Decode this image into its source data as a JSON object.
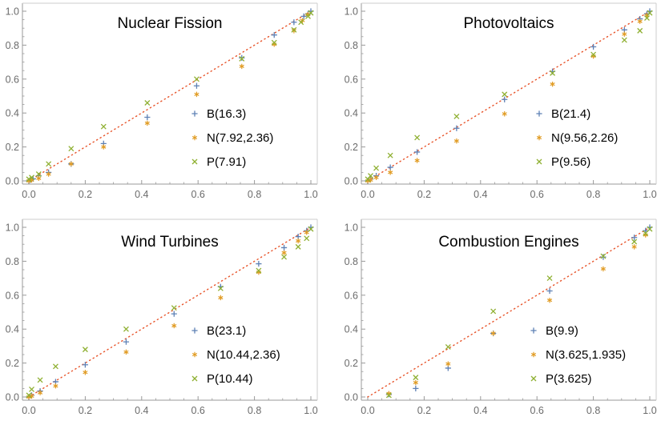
{
  "figure": {
    "description_free": true
  },
  "colors": {
    "series_B": "#5e81b5",
    "series_N": "#e19c24",
    "series_P": "#8fb032",
    "reference_line": "#e8542a",
    "axis": "#999999",
    "tick_text": "#6b6b6b"
  },
  "chart_data": [
    {
      "type": "scatter",
      "title": "Nuclear Fission",
      "xlim": [
        0,
        1
      ],
      "ylim": [
        0,
        1
      ],
      "xticks": [
        "0.0",
        "0.2",
        "0.4",
        "0.6",
        "0.8",
        "1.0"
      ],
      "yticks": [
        "0.0",
        "0.2",
        "0.4",
        "0.6",
        "0.8",
        "1.0"
      ],
      "reference_line": "y=x",
      "legend_position": "right",
      "series": [
        {
          "name": "B(16.3)",
          "marker": "plus",
          "x": [
            0.0,
            0.005,
            0.015,
            0.035,
            0.07,
            0.15,
            0.265,
            0.42,
            0.595,
            0.755,
            0.87,
            0.94,
            0.975,
            0.99,
            1.0
          ],
          "y": [
            0.0,
            0.005,
            0.012,
            0.03,
            0.05,
            0.1,
            0.22,
            0.375,
            0.56,
            0.725,
            0.86,
            0.935,
            0.97,
            0.985,
            1.0
          ]
        },
        {
          "name": "N(7.92,2.36)",
          "marker": "star",
          "x": [
            0.0,
            0.01,
            0.035,
            0.07,
            0.15,
            0.265,
            0.42,
            0.595,
            0.755,
            0.87,
            0.94,
            0.97,
            0.99
          ],
          "y": [
            0.0,
            0.005,
            0.015,
            0.04,
            0.1,
            0.2,
            0.34,
            0.51,
            0.675,
            0.805,
            0.885,
            0.945,
            0.98
          ]
        },
        {
          "name": "P(7.91)",
          "marker": "x",
          "x": [
            0.0,
            0.01,
            0.035,
            0.07,
            0.15,
            0.265,
            0.42,
            0.595,
            0.755,
            0.87,
            0.94,
            0.965,
            0.99,
            1.0
          ],
          "y": [
            0.01,
            0.02,
            0.04,
            0.1,
            0.19,
            0.32,
            0.46,
            0.6,
            0.72,
            0.815,
            0.89,
            0.935,
            0.97,
            0.99
          ]
        }
      ]
    },
    {
      "type": "scatter",
      "title": "Photovoltaics",
      "xlim": [
        0,
        1
      ],
      "ylim": [
        0,
        1
      ],
      "xticks": [
        "0.0",
        "0.2",
        "0.4",
        "0.6",
        "0.8",
        "1.0"
      ],
      "yticks": [
        "0.0",
        "0.2",
        "0.4",
        "0.6",
        "0.8",
        "1.0"
      ],
      "reference_line": "y=x",
      "legend_position": "right",
      "series": [
        {
          "name": "B(21.4)",
          "marker": "plus",
          "x": [
            0.0,
            0.01,
            0.03,
            0.08,
            0.175,
            0.315,
            0.485,
            0.655,
            0.8,
            0.91,
            0.965,
            0.99,
            1.0
          ],
          "y": [
            0.0,
            0.01,
            0.03,
            0.08,
            0.17,
            0.31,
            0.48,
            0.645,
            0.79,
            0.89,
            0.955,
            0.985,
            1.0
          ]
        },
        {
          "name": "N(9.56,2.26)",
          "marker": "star",
          "x": [
            0.0,
            0.01,
            0.03,
            0.08,
            0.175,
            0.315,
            0.485,
            0.655,
            0.8,
            0.91,
            0.965,
            0.99
          ],
          "y": [
            0.0,
            0.005,
            0.02,
            0.05,
            0.12,
            0.235,
            0.395,
            0.57,
            0.735,
            0.865,
            0.94,
            0.975
          ]
        },
        {
          "name": "P(9.56)",
          "marker": "x",
          "x": [
            0.0,
            0.01,
            0.03,
            0.08,
            0.175,
            0.315,
            0.485,
            0.655,
            0.8,
            0.91,
            0.965,
            0.99,
            1.0
          ],
          "y": [
            0.01,
            0.03,
            0.075,
            0.15,
            0.255,
            0.38,
            0.51,
            0.635,
            0.745,
            0.83,
            0.885,
            0.96,
            0.99
          ]
        }
      ]
    },
    {
      "type": "scatter",
      "title": "Wind Turbines",
      "xlim": [
        0,
        1
      ],
      "ylim": [
        0,
        1
      ],
      "xticks": [
        "0.0",
        "0.2",
        "0.4",
        "0.6",
        "0.8",
        "1.0"
      ],
      "yticks": [
        "0.0",
        "0.2",
        "0.4",
        "0.6",
        "0.8",
        "1.0"
      ],
      "reference_line": "y=x",
      "legend_position": "right",
      "series": [
        {
          "name": "B(23.1)",
          "marker": "plus",
          "x": [
            0.0,
            0.01,
            0.04,
            0.095,
            0.2,
            0.345,
            0.515,
            0.68,
            0.815,
            0.905,
            0.955,
            0.985,
            1.0
          ],
          "y": [
            0.0,
            0.01,
            0.035,
            0.09,
            0.19,
            0.325,
            0.49,
            0.65,
            0.785,
            0.88,
            0.945,
            0.98,
            1.0
          ]
        },
        {
          "name": "N(10.44,2.36)",
          "marker": "star",
          "x": [
            0.0,
            0.01,
            0.04,
            0.095,
            0.2,
            0.345,
            0.515,
            0.68,
            0.815,
            0.905,
            0.955,
            0.985
          ],
          "y": [
            0.0,
            0.005,
            0.025,
            0.065,
            0.145,
            0.265,
            0.42,
            0.585,
            0.735,
            0.85,
            0.92,
            0.97
          ]
        },
        {
          "name": "P(10.44)",
          "marker": "x",
          "x": [
            0.0,
            0.01,
            0.04,
            0.095,
            0.2,
            0.345,
            0.515,
            0.68,
            0.815,
            0.905,
            0.955,
            0.985,
            1.0
          ],
          "y": [
            0.01,
            0.045,
            0.1,
            0.18,
            0.28,
            0.4,
            0.525,
            0.64,
            0.745,
            0.825,
            0.885,
            0.935,
            0.99
          ]
        }
      ]
    },
    {
      "type": "scatter",
      "title": "Combustion Engines",
      "xlim": [
        0,
        1
      ],
      "ylim": [
        0,
        1
      ],
      "xticks": [
        "0.0",
        "0.2",
        "0.4",
        "0.6",
        "0.8",
        "1.0"
      ],
      "yticks": [
        "0.0",
        "0.2",
        "0.4",
        "0.6",
        "0.8",
        "1.0"
      ],
      "reference_line": "y=x",
      "legend_position": "right",
      "series": [
        {
          "name": "B(9.9)",
          "marker": "plus",
          "x": [
            0.075,
            0.17,
            0.285,
            0.445,
            0.645,
            0.835,
            0.945,
            0.985,
            1.0
          ],
          "y": [
            0.015,
            0.05,
            0.17,
            0.375,
            0.625,
            0.825,
            0.94,
            0.98,
            1.0
          ]
        },
        {
          "name": "N(3.625,1.935)",
          "marker": "star",
          "x": [
            0.075,
            0.17,
            0.285,
            0.445,
            0.645,
            0.835,
            0.945,
            0.985
          ],
          "y": [
            0.02,
            0.085,
            0.195,
            0.375,
            0.57,
            0.755,
            0.885,
            0.955
          ]
        },
        {
          "name": "P(3.625)",
          "marker": "x",
          "x": [
            0.075,
            0.17,
            0.285,
            0.445,
            0.645,
            0.835,
            0.945,
            0.985,
            1.0
          ],
          "y": [
            0.01,
            0.115,
            0.295,
            0.505,
            0.7,
            0.83,
            0.915,
            0.965,
            0.99
          ]
        }
      ]
    }
  ]
}
